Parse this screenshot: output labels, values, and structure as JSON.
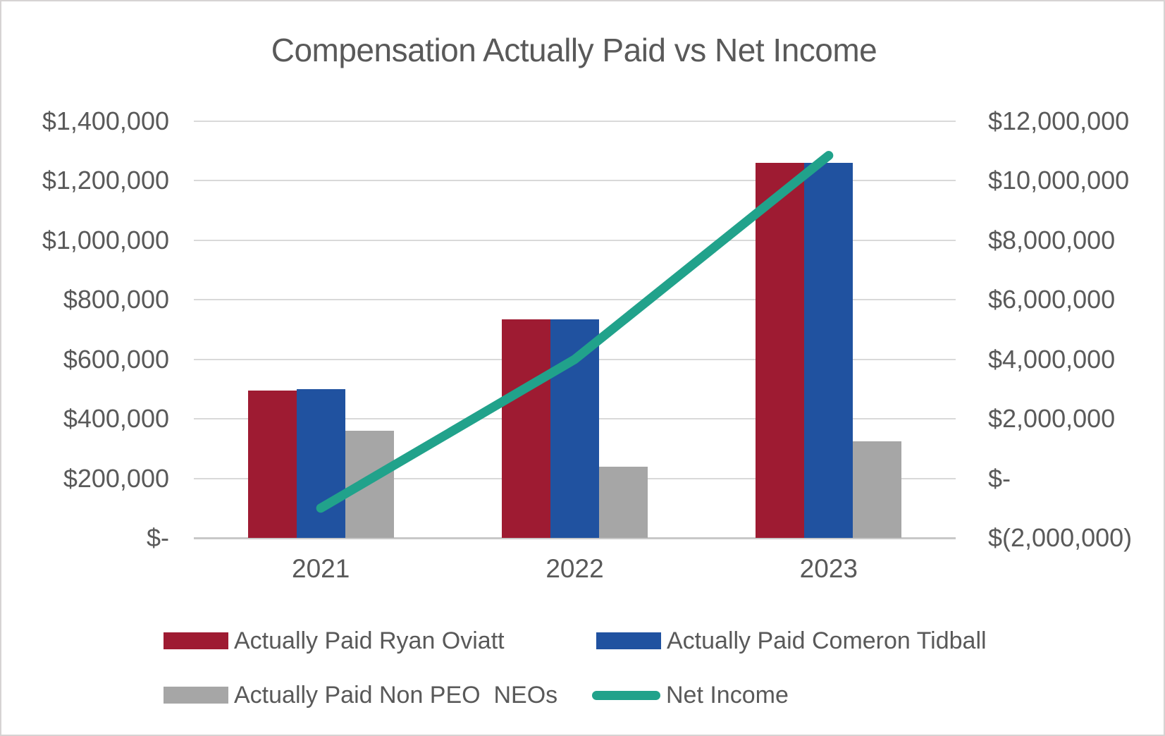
{
  "chart_data": {
    "type": "bar",
    "subtype": "combo-bar-line-dual-axis",
    "title": "Compensation Actually Paid vs Net Income",
    "categories": [
      "2021",
      "2022",
      "2023"
    ],
    "series": [
      {
        "name": "Actually Paid Ryan Oviatt",
        "type": "bar",
        "axis": "left",
        "color": "#9e1b32",
        "values": [
          495000,
          735000,
          1260000
        ]
      },
      {
        "name": "Actually Paid Comeron Tidball",
        "type": "bar",
        "axis": "left",
        "color": "#2052a0",
        "values": [
          500000,
          735000,
          1260000
        ]
      },
      {
        "name": "Actually Paid Non PEO  NEOs",
        "type": "bar",
        "axis": "left",
        "color": "#a6a6a6",
        "values": [
          360000,
          240000,
          325000
        ]
      },
      {
        "name": "Net Income",
        "type": "line",
        "axis": "right",
        "color": "#21a28b",
        "values": [
          -1000000,
          4000000,
          10850000
        ]
      }
    ],
    "left_axis": {
      "min": 0,
      "max": 1400000,
      "tick_step": 200000,
      "labels": [
        "$1,400,000",
        "$1,200,000",
        "$1,000,000",
        "$800,000",
        "$600,000",
        "$400,000",
        "$200,000",
        "$-"
      ]
    },
    "right_axis": {
      "min": -2000000,
      "max": 12000000,
      "tick_step": 2000000,
      "labels": [
        "$12,000,000",
        "$10,000,000",
        "$8,000,000",
        "$6,000,000",
        "$4,000,000",
        "$2,000,000",
        "$-",
        "$(2,000,000)"
      ]
    },
    "grid": true,
    "legend_position": "bottom",
    "text_color": "#595959",
    "gridline_color": "#d9d9d9"
  }
}
